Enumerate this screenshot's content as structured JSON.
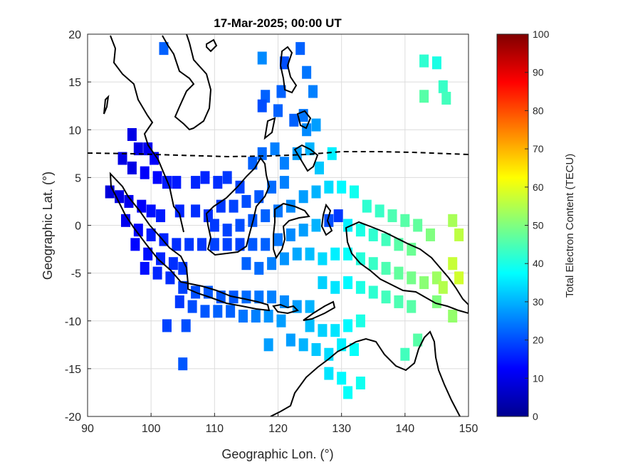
{
  "chart_data": {
    "type": "heatmap",
    "title": "17-Mar-2025; 00:00 UT",
    "xlabel": "Geographic Lon. (°)",
    "ylabel": "Geographic Lat. (°)",
    "xlim": [
      90,
      150
    ],
    "ylim": [
      -20,
      20
    ],
    "xticks": [
      90,
      100,
      110,
      120,
      130,
      140,
      150
    ],
    "yticks": [
      20,
      15,
      10,
      5,
      0,
      -5,
      -10,
      -15,
      -20
    ],
    "grid": true,
    "colorbar": {
      "label": "Total Electron Content (TECU)",
      "range": [
        0,
        100
      ],
      "ticks": [
        100,
        90,
        80,
        70,
        60,
        50,
        40,
        30,
        20,
        10,
        0
      ],
      "colormap": "jet"
    },
    "overlays": [
      "coastlines",
      "magnetic equator (dashed)"
    ],
    "cells_tecu": [
      {
        "lon": 102,
        "lat": 18.5,
        "tec": 22
      },
      {
        "lon": 117.5,
        "lat": 17.5,
        "tec": 26
      },
      {
        "lon": 121,
        "lat": 17,
        "tec": 20
      },
      {
        "lon": 123.5,
        "lat": 18.5,
        "tec": 22
      },
      {
        "lon": 124.5,
        "lat": 16,
        "tec": 24
      },
      {
        "lon": 125.5,
        "lat": 14,
        "tec": 25
      },
      {
        "lon": 118,
        "lat": 13.5,
        "tec": 22
      },
      {
        "lon": 117.5,
        "lat": 12.5,
        "tec": 20
      },
      {
        "lon": 120,
        "lat": 12,
        "tec": 22
      },
      {
        "lon": 120.5,
        "lat": 14,
        "tec": 22
      },
      {
        "lon": 122.5,
        "lat": 11,
        "tec": 22
      },
      {
        "lon": 124,
        "lat": 11.5,
        "tec": 24
      },
      {
        "lon": 143,
        "lat": 17.2,
        "tec": 42
      },
      {
        "lon": 145,
        "lat": 17,
        "tec": 40
      },
      {
        "lon": 146,
        "lat": 14.5,
        "tec": 43
      },
      {
        "lon": 146.5,
        "lat": 13.3,
        "tec": 44
      },
      {
        "lon": 143,
        "lat": 13.5,
        "tec": 46
      },
      {
        "lon": 97,
        "lat": 9.5,
        "tec": 10
      },
      {
        "lon": 98,
        "lat": 8,
        "tec": 10
      },
      {
        "lon": 99.5,
        "lat": 8,
        "tec": 11
      },
      {
        "lon": 100.5,
        "lat": 7,
        "tec": 12
      },
      {
        "lon": 95.5,
        "lat": 7,
        "tec": 10
      },
      {
        "lon": 97,
        "lat": 6,
        "tec": 10
      },
      {
        "lon": 99,
        "lat": 5.5,
        "tec": 12
      },
      {
        "lon": 101,
        "lat": 5,
        "tec": 13
      },
      {
        "lon": 102.5,
        "lat": 4.5,
        "tec": 15
      },
      {
        "lon": 104,
        "lat": 4.5,
        "tec": 15
      },
      {
        "lon": 93.5,
        "lat": 3.5,
        "tec": 9
      },
      {
        "lon": 95,
        "lat": 3,
        "tec": 10
      },
      {
        "lon": 96.5,
        "lat": 2.5,
        "tec": 11
      },
      {
        "lon": 98.5,
        "lat": 2,
        "tec": 12
      },
      {
        "lon": 100,
        "lat": 1.5,
        "tec": 14
      },
      {
        "lon": 101.5,
        "lat": 1,
        "tec": 15
      },
      {
        "lon": 104.5,
        "lat": 1.5,
        "tec": 16
      },
      {
        "lon": 107,
        "lat": 1.5,
        "tec": 17
      },
      {
        "lon": 109,
        "lat": 1,
        "tec": 17
      },
      {
        "lon": 96,
        "lat": 0.5,
        "tec": 11
      },
      {
        "lon": 98,
        "lat": -0.5,
        "tec": 13
      },
      {
        "lon": 100,
        "lat": -1,
        "tec": 15
      },
      {
        "lon": 102,
        "lat": -1.5,
        "tec": 16
      },
      {
        "lon": 104,
        "lat": -2,
        "tec": 17
      },
      {
        "lon": 106,
        "lat": -2,
        "tec": 18
      },
      {
        "lon": 108,
        "lat": -2,
        "tec": 18
      },
      {
        "lon": 110,
        "lat": -2,
        "tec": 19
      },
      {
        "lon": 112,
        "lat": -2,
        "tec": 19
      },
      {
        "lon": 114,
        "lat": -2,
        "tec": 19
      },
      {
        "lon": 97.5,
        "lat": -2,
        "tec": 13
      },
      {
        "lon": 99.5,
        "lat": -3,
        "tec": 14
      },
      {
        "lon": 101.5,
        "lat": -3.5,
        "tec": 16
      },
      {
        "lon": 103.5,
        "lat": -4,
        "tec": 17
      },
      {
        "lon": 105,
        "lat": -4.5,
        "tec": 18
      },
      {
        "lon": 99,
        "lat": -4.5,
        "tec": 14
      },
      {
        "lon": 101,
        "lat": -5,
        "tec": 16
      },
      {
        "lon": 103,
        "lat": -5.5,
        "tec": 17
      },
      {
        "lon": 105,
        "lat": -6.5,
        "tec": 19
      },
      {
        "lon": 107,
        "lat": -7,
        "tec": 20
      },
      {
        "lon": 109,
        "lat": -7,
        "tec": 21
      },
      {
        "lon": 111,
        "lat": -7.5,
        "tec": 21
      },
      {
        "lon": 113,
        "lat": -7.5,
        "tec": 21
      },
      {
        "lon": 115,
        "lat": -7.5,
        "tec": 23
      },
      {
        "lon": 117,
        "lat": -7.5,
        "tec": 24
      },
      {
        "lon": 119,
        "lat": -7.5,
        "tec": 25
      },
      {
        "lon": 121,
        "lat": -8,
        "tec": 26
      },
      {
        "lon": 123,
        "lat": -8.5,
        "tec": 28
      },
      {
        "lon": 125,
        "lat": -8.5,
        "tec": 30
      },
      {
        "lon": 104.5,
        "lat": -8,
        "tec": 18
      },
      {
        "lon": 106.5,
        "lat": -8.5,
        "tec": 20
      },
      {
        "lon": 108.5,
        "lat": -9,
        "tec": 21
      },
      {
        "lon": 110.5,
        "lat": -9,
        "tec": 22
      },
      {
        "lon": 112.5,
        "lat": -9,
        "tec": 22
      },
      {
        "lon": 114.5,
        "lat": -9.5,
        "tec": 24
      },
      {
        "lon": 116.5,
        "lat": -9.5,
        "tec": 25
      },
      {
        "lon": 118.5,
        "lat": -9.5,
        "tec": 27
      },
      {
        "lon": 120.5,
        "lat": -10,
        "tec": 28
      },
      {
        "lon": 107,
        "lat": 4.5,
        "tec": 16
      },
      {
        "lon": 108.5,
        "lat": 5,
        "tec": 16
      },
      {
        "lon": 110.5,
        "lat": 4.5,
        "tec": 17
      },
      {
        "lon": 112,
        "lat": 5,
        "tec": 18
      },
      {
        "lon": 114,
        "lat": 4,
        "tec": 19
      },
      {
        "lon": 116,
        "lat": 6.5,
        "tec": 22
      },
      {
        "lon": 117.5,
        "lat": 7.5,
        "tec": 23
      },
      {
        "lon": 119.5,
        "lat": 8,
        "tec": 25
      },
      {
        "lon": 121,
        "lat": 6.5,
        "tec": 25
      },
      {
        "lon": 123,
        "lat": 7.5,
        "tec": 28
      },
      {
        "lon": 125,
        "lat": 8,
        "tec": 30
      },
      {
        "lon": 126.5,
        "lat": 6,
        "tec": 32
      },
      {
        "lon": 128.5,
        "lat": 7.5,
        "tec": 36
      },
      {
        "lon": 124.5,
        "lat": 10,
        "tec": 26
      },
      {
        "lon": 126,
        "lat": 10.5,
        "tec": 28
      },
      {
        "lon": 111,
        "lat": 2,
        "tec": 18
      },
      {
        "lon": 113,
        "lat": 2,
        "tec": 19
      },
      {
        "lon": 115,
        "lat": 2.5,
        "tec": 20
      },
      {
        "lon": 117,
        "lat": 3,
        "tec": 21
      },
      {
        "lon": 119,
        "lat": 4,
        "tec": 23
      },
      {
        "lon": 121,
        "lat": 4.5,
        "tec": 25
      },
      {
        "lon": 110,
        "lat": 0,
        "tec": 18
      },
      {
        "lon": 112,
        "lat": -0.5,
        "tec": 19
      },
      {
        "lon": 114,
        "lat": 0,
        "tec": 20
      },
      {
        "lon": 116,
        "lat": 0.5,
        "tec": 21
      },
      {
        "lon": 118,
        "lat": 1,
        "tec": 22
      },
      {
        "lon": 120,
        "lat": 1.5,
        "tec": 24
      },
      {
        "lon": 122,
        "lat": 2,
        "tec": 26
      },
      {
        "lon": 124,
        "lat": 3,
        "tec": 28
      },
      {
        "lon": 126,
        "lat": 3.5,
        "tec": 30
      },
      {
        "lon": 128,
        "lat": 4,
        "tec": 34
      },
      {
        "lon": 130,
        "lat": 4,
        "tec": 37
      },
      {
        "lon": 132,
        "lat": 3.5,
        "tec": 39
      },
      {
        "lon": 134,
        "lat": 2,
        "tec": 42
      },
      {
        "lon": 136,
        "lat": 1.5,
        "tec": 43
      },
      {
        "lon": 138,
        "lat": 1,
        "tec": 45
      },
      {
        "lon": 140,
        "lat": 0.5,
        "tec": 46
      },
      {
        "lon": 142,
        "lat": 0,
        "tec": 47
      },
      {
        "lon": 116,
        "lat": -2,
        "tec": 21
      },
      {
        "lon": 118,
        "lat": -2,
        "tec": 22
      },
      {
        "lon": 120,
        "lat": -1.5,
        "tec": 24
      },
      {
        "lon": 122,
        "lat": -1,
        "tec": 26
      },
      {
        "lon": 124,
        "lat": -0.5,
        "tec": 28
      },
      {
        "lon": 126,
        "lat": 0,
        "tec": 30
      },
      {
        "lon": 128,
        "lat": 0.5,
        "tec": 20
      },
      {
        "lon": 129.5,
        "lat": 1,
        "tec": 18
      },
      {
        "lon": 131,
        "lat": 0,
        "tec": 36
      },
      {
        "lon": 133,
        "lat": -0.5,
        "tec": 40
      },
      {
        "lon": 135,
        "lat": -1,
        "tec": 42
      },
      {
        "lon": 137,
        "lat": -1.5,
        "tec": 44
      },
      {
        "lon": 139,
        "lat": -2,
        "tec": 46
      },
      {
        "lon": 141,
        "lat": -2.5,
        "tec": 48
      },
      {
        "lon": 144,
        "lat": -1,
        "tec": 50
      },
      {
        "lon": 147.5,
        "lat": 0.5,
        "tec": 54
      },
      {
        "lon": 148.5,
        "lat": -1,
        "tec": 56
      },
      {
        "lon": 115,
        "lat": -4,
        "tec": 22
      },
      {
        "lon": 117,
        "lat": -4.5,
        "tec": 23
      },
      {
        "lon": 119,
        "lat": -4,
        "tec": 25
      },
      {
        "lon": 121,
        "lat": -3.5,
        "tec": 27
      },
      {
        "lon": 123,
        "lat": -3,
        "tec": 29
      },
      {
        "lon": 125,
        "lat": -3,
        "tec": 31
      },
      {
        "lon": 127,
        "lat": -3.5,
        "tec": 34
      },
      {
        "lon": 129,
        "lat": -3,
        "tec": 36
      },
      {
        "lon": 131,
        "lat": -3,
        "tec": 38
      },
      {
        "lon": 133,
        "lat": -3.5,
        "tec": 41
      },
      {
        "lon": 135,
        "lat": -4,
        "tec": 43
      },
      {
        "lon": 137,
        "lat": -4.5,
        "tec": 45
      },
      {
        "lon": 139,
        "lat": -5,
        "tec": 47
      },
      {
        "lon": 141,
        "lat": -5.5,
        "tec": 49
      },
      {
        "lon": 143,
        "lat": -6,
        "tec": 51
      },
      {
        "lon": 145,
        "lat": -5.5,
        "tec": 53
      },
      {
        "lon": 147.5,
        "lat": -4,
        "tec": 57
      },
      {
        "lon": 148.5,
        "lat": -5.5,
        "tec": 58
      },
      {
        "lon": 146,
        "lat": -6.5,
        "tec": 55
      },
      {
        "lon": 127,
        "lat": -6,
        "tec": 33
      },
      {
        "lon": 129,
        "lat": -6.5,
        "tec": 35
      },
      {
        "lon": 131,
        "lat": -6,
        "tec": 37
      },
      {
        "lon": 133,
        "lat": -6.5,
        "tec": 40
      },
      {
        "lon": 135,
        "lat": -7,
        "tec": 42
      },
      {
        "lon": 137,
        "lat": -7.5,
        "tec": 44
      },
      {
        "lon": 139,
        "lat": -8,
        "tec": 45
      },
      {
        "lon": 141,
        "lat": -8.5,
        "tec": 46
      },
      {
        "lon": 145,
        "lat": -8,
        "tec": 50
      },
      {
        "lon": 147.5,
        "lat": -9.5,
        "tec": 52
      },
      {
        "lon": 125,
        "lat": -10.5,
        "tec": 31
      },
      {
        "lon": 127,
        "lat": -11,
        "tec": 33
      },
      {
        "lon": 129,
        "lat": -11,
        "tec": 35
      },
      {
        "lon": 131,
        "lat": -10.5,
        "tec": 37
      },
      {
        "lon": 133,
        "lat": -10,
        "tec": 40
      },
      {
        "lon": 122,
        "lat": -12,
        "tec": 28
      },
      {
        "lon": 124,
        "lat": -12.5,
        "tec": 30
      },
      {
        "lon": 126,
        "lat": -13,
        "tec": 32
      },
      {
        "lon": 128,
        "lat": -13.5,
        "tec": 34
      },
      {
        "lon": 130,
        "lat": -12.5,
        "tec": 36
      },
      {
        "lon": 132,
        "lat": -13,
        "tec": 38
      },
      {
        "lon": 118.5,
        "lat": -12.5,
        "tec": 28
      },
      {
        "lon": 128,
        "lat": -15.5,
        "tec": 35
      },
      {
        "lon": 130,
        "lat": -16,
        "tec": 37
      },
      {
        "lon": 131,
        "lat": -17.5,
        "tec": 38
      },
      {
        "lon": 133,
        "lat": -16.5,
        "tec": 39
      },
      {
        "lon": 140,
        "lat": -13.5,
        "tec": 44
      },
      {
        "lon": 142,
        "lat": -12,
        "tec": 46
      },
      {
        "lon": 102.5,
        "lat": -10.5,
        "tec": 19
      },
      {
        "lon": 105.5,
        "lat": -10.5,
        "tec": 20
      },
      {
        "lon": 105,
        "lat": -14.5,
        "tec": 21
      }
    ]
  }
}
